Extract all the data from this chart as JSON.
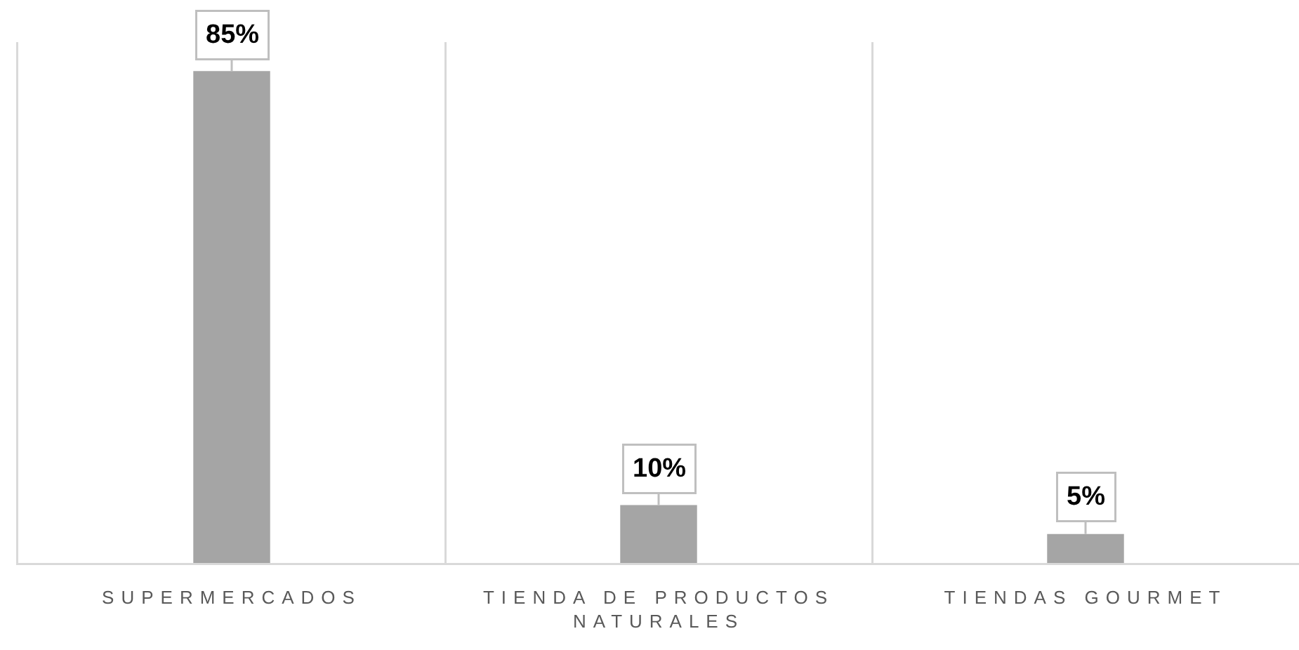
{
  "chart_data": {
    "type": "bar",
    "categories": [
      "SUPERMERCADOS",
      "TIENDA DE PRODUCTOS NATURALES",
      "TIENDAS GOURMET"
    ],
    "values": [
      85,
      10,
      5
    ],
    "value_labels": [
      "85%",
      "10%",
      "5%"
    ],
    "color": "#a5a5a5",
    "ylim": [
      0,
      90
    ],
    "grid": "x",
    "tick_labels": "x"
  }
}
